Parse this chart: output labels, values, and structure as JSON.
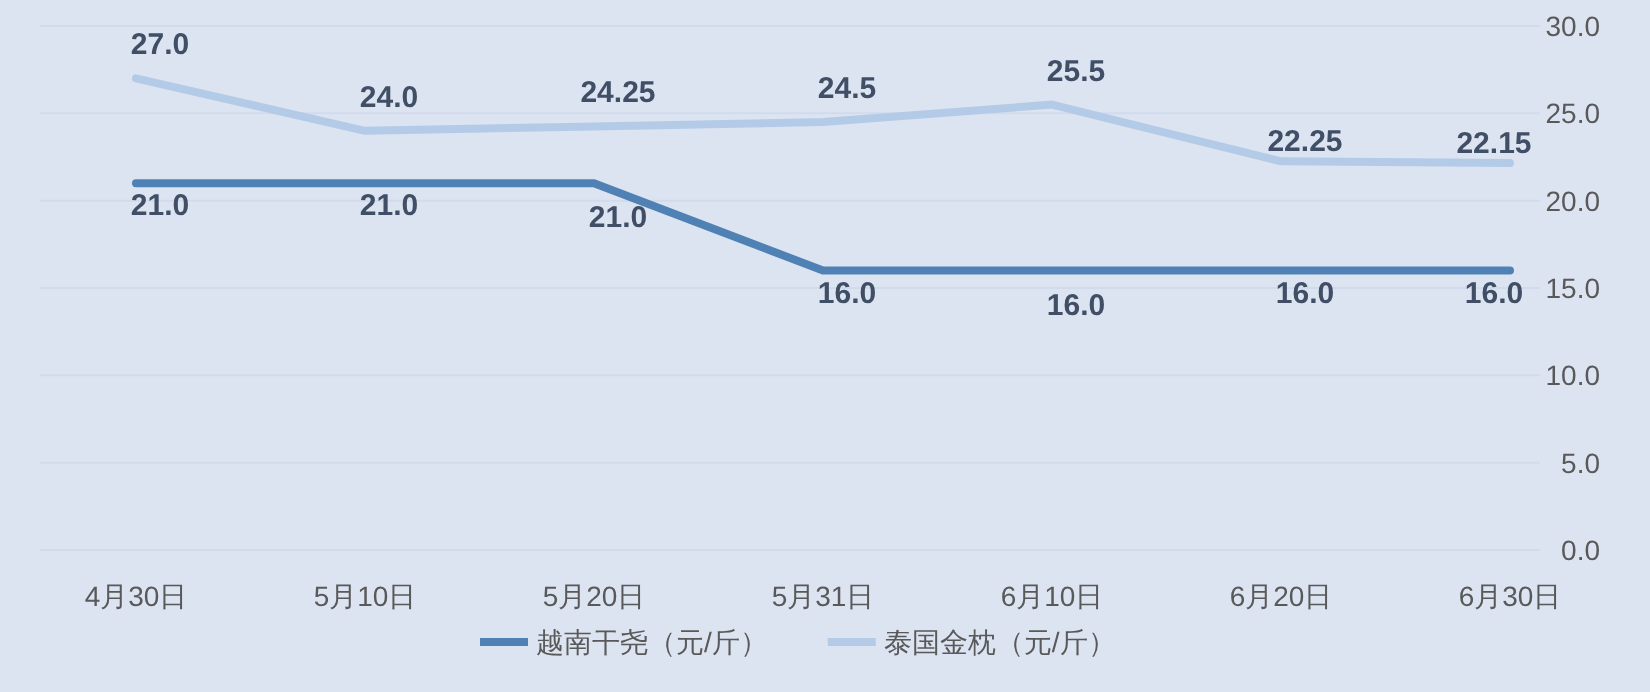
{
  "chart_data": {
    "type": "line",
    "categories": [
      "4月30日",
      "5月10日",
      "5月20日",
      "5月31日",
      "6月10日",
      "6月20日",
      "6月30日"
    ],
    "series": [
      {
        "name": "越南干尧（元/斤）",
        "color": "#4f81b4",
        "values": [
          21,
          21,
          21,
          16,
          16,
          16,
          16
        ],
        "value_labels": [
          "21.0",
          "21.0",
          "21.0",
          "16.0",
          "16.0",
          "16.0",
          "16.0"
        ],
        "axis": "y2"
      },
      {
        "name": "泰国金枕（元/斤）",
        "color": "#b4cbe8",
        "values": [
          27,
          24,
          24.25,
          24.5,
          25.5,
          22.25,
          22.15
        ],
        "value_labels": [
          "27.0",
          "24.0",
          "24.25",
          "24.5",
          "25.5",
          "22.25",
          "22.15"
        ],
        "axis": "y2"
      }
    ],
    "y2lim": [
      0,
      30
    ],
    "y2ticks": [
      {
        "value": 0,
        "label": "0.0"
      },
      {
        "value": 5,
        "label": "5.0"
      },
      {
        "value": 10,
        "label": "10.0"
      },
      {
        "value": 15,
        "label": "15.0"
      },
      {
        "value": 20,
        "label": "20.0"
      },
      {
        "value": 25,
        "label": "25.0"
      },
      {
        "value": 30,
        "label": "30.0"
      }
    ],
    "grid": "y",
    "legend": "bottom",
    "marker": "none",
    "line_style": "solid"
  }
}
